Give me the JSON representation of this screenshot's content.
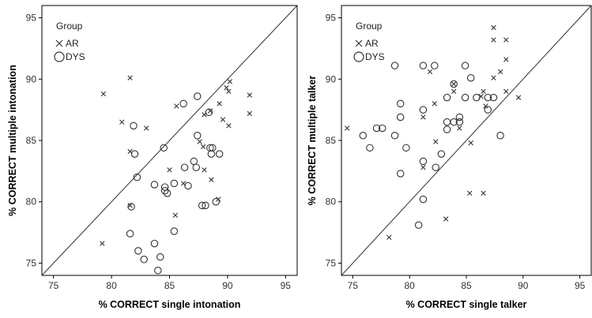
{
  "chart_data": [
    {
      "type": "scatter",
      "title": "",
      "xlabel": "% CORRECT single intonation",
      "ylabel": "% CORRECT multiple intonation",
      "xlim": [
        74,
        96
      ],
      "ylim": [
        74,
        96
      ],
      "xticks": [
        "75",
        "80",
        "85",
        "90",
        "95"
      ],
      "yticks": [
        "75",
        "80",
        "85",
        "90",
        "95"
      ],
      "reference_line": "identity",
      "legend": {
        "title": "Group",
        "position": "top-left",
        "entries": [
          "AR",
          "DYS"
        ]
      },
      "series": [
        {
          "name": "AR",
          "marker": "x",
          "points": [
            [
              79.3,
              88.8
            ],
            [
              81.6,
              90.1
            ],
            [
              80.9,
              86.5
            ],
            [
              81.6,
              84.1
            ],
            [
              83.0,
              86.0
            ],
            [
              79.2,
              76.6
            ],
            [
              81.6,
              79.7
            ],
            [
              85.0,
              82.6
            ],
            [
              86.2,
              81.5
            ],
            [
              85.5,
              78.9
            ],
            [
              85.6,
              87.8
            ],
            [
              87.6,
              84.9
            ],
            [
              87.9,
              84.5
            ],
            [
              88.0,
              82.6
            ],
            [
              88.0,
              87.1
            ],
            [
              88.5,
              87.4
            ],
            [
              88.6,
              81.8
            ],
            [
              89.2,
              80.2
            ],
            [
              89.3,
              88.0
            ],
            [
              89.6,
              86.7
            ],
            [
              89.9,
              89.3
            ],
            [
              90.1,
              89.0
            ],
            [
              90.2,
              89.8
            ],
            [
              90.1,
              86.2
            ],
            [
              91.9,
              88.7
            ],
            [
              91.9,
              87.2
            ]
          ]
        },
        {
          "name": "DYS",
          "marker": "o",
          "points": [
            [
              81.9,
              86.2
            ],
            [
              82.0,
              83.9
            ],
            [
              82.2,
              82.0
            ],
            [
              81.7,
              79.6
            ],
            [
              81.6,
              77.4
            ],
            [
              82.3,
              76.0
            ],
            [
              82.8,
              75.3
            ],
            [
              83.7,
              76.6
            ],
            [
              84.0,
              74.4
            ],
            [
              84.2,
              75.5
            ],
            [
              83.7,
              81.4
            ],
            [
              84.6,
              80.9
            ],
            [
              84.8,
              80.7
            ],
            [
              84.6,
              81.2
            ],
            [
              84.5,
              84.4
            ],
            [
              85.4,
              81.5
            ],
            [
              85.4,
              77.6
            ],
            [
              86.2,
              88.0
            ],
            [
              86.3,
              82.8
            ],
            [
              86.6,
              81.3
            ],
            [
              87.1,
              83.3
            ],
            [
              87.4,
              88.6
            ],
            [
              87.4,
              85.4
            ],
            [
              87.3,
              82.8
            ],
            [
              87.8,
              79.7
            ],
            [
              88.1,
              79.7
            ],
            [
              88.4,
              87.3
            ],
            [
              88.5,
              84.4
            ],
            [
              88.7,
              84.4
            ],
            [
              88.6,
              83.9
            ],
            [
              89.0,
              80.0
            ],
            [
              89.3,
              83.9
            ]
          ]
        }
      ]
    },
    {
      "type": "scatter",
      "title": "",
      "xlabel": "% CORRECT single talker",
      "ylabel": "% CORRECT multiple talker",
      "xlim": [
        74,
        96
      ],
      "ylim": [
        74,
        96
      ],
      "xticks": [
        "75",
        "80",
        "85",
        "90",
        "95"
      ],
      "yticks": [
        "75",
        "80",
        "85",
        "90",
        "95"
      ],
      "reference_line": "identity",
      "legend": {
        "title": "Group",
        "position": "top-left",
        "entries": [
          "AR",
          "DYS"
        ]
      },
      "series": [
        {
          "name": "AR",
          "marker": "x",
          "points": [
            [
              74.5,
              86.0
            ],
            [
              78.2,
              77.1
            ],
            [
              81.2,
              82.8
            ],
            [
              81.2,
              86.9
            ],
            [
              81.8,
              90.6
            ],
            [
              82.2,
              88.0
            ],
            [
              82.3,
              84.9
            ],
            [
              83.2,
              78.6
            ],
            [
              83.9,
              89.0
            ],
            [
              83.9,
              89.6
            ],
            [
              84.4,
              86.0
            ],
            [
              85.3,
              80.7
            ],
            [
              85.4,
              84.8
            ],
            [
              86.3,
              88.6
            ],
            [
              86.5,
              89.0
            ],
            [
              86.5,
              80.7
            ],
            [
              86.7,
              87.8
            ],
            [
              87.4,
              94.2
            ],
            [
              87.4,
              93.2
            ],
            [
              87.4,
              90.1
            ],
            [
              88.0,
              90.6
            ],
            [
              88.5,
              93.2
            ],
            [
              88.5,
              91.6
            ],
            [
              88.5,
              89.0
            ],
            [
              89.6,
              88.5
            ]
          ]
        },
        {
          "name": "DYS",
          "marker": "o",
          "points": [
            [
              75.9,
              85.4
            ],
            [
              76.5,
              84.4
            ],
            [
              77.1,
              86.0
            ],
            [
              77.6,
              86.0
            ],
            [
              78.7,
              91.1
            ],
            [
              78.7,
              85.4
            ],
            [
              79.2,
              88.0
            ],
            [
              79.2,
              86.9
            ],
            [
              79.2,
              82.3
            ],
            [
              79.7,
              84.4
            ],
            [
              80.8,
              78.1
            ],
            [
              81.2,
              91.1
            ],
            [
              81.2,
              87.5
            ],
            [
              81.2,
              83.3
            ],
            [
              81.2,
              80.2
            ],
            [
              82.2,
              91.1
            ],
            [
              82.3,
              82.8
            ],
            [
              82.8,
              83.9
            ],
            [
              83.3,
              88.5
            ],
            [
              83.3,
              86.5
            ],
            [
              83.3,
              85.9
            ],
            [
              83.9,
              89.6
            ],
            [
              83.9,
              86.5
            ],
            [
              84.4,
              86.9
            ],
            [
              84.4,
              86.5
            ],
            [
              84.9,
              91.1
            ],
            [
              84.9,
              88.5
            ],
            [
              85.4,
              90.1
            ],
            [
              85.9,
              88.5
            ],
            [
              86.9,
              87.5
            ],
            [
              86.9,
              88.5
            ],
            [
              87.4,
              88.5
            ],
            [
              88.0,
              85.4
            ]
          ]
        }
      ]
    }
  ]
}
